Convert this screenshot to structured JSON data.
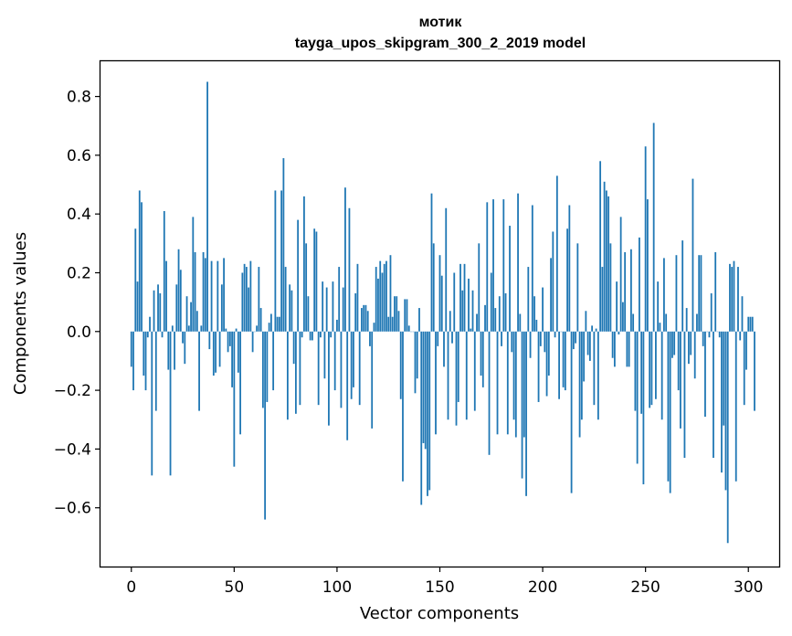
{
  "chart_data": {
    "type": "bar",
    "title": "мотик",
    "subtitle": "tayga_upos_skipgram_300_2_2019 model",
    "xlabel": "Vector components",
    "ylabel": "Components values",
    "xlim": [
      -15,
      315
    ],
    "ylim": [
      -0.8,
      0.92
    ],
    "xticks": [
      0,
      50,
      100,
      150,
      200,
      250,
      300
    ],
    "yticks": [
      -0.6,
      -0.4,
      -0.2,
      0.0,
      0.2,
      0.4,
      0.6,
      0.8
    ],
    "ytick_labels": [
      "−0.6",
      "−0.4",
      "−0.2",
      "0.0",
      "0.2",
      "0.4",
      "0.6",
      "0.8"
    ],
    "grid": false,
    "bar_color": "#1f77b4",
    "values": [
      -0.12,
      -0.2,
      0.35,
      0.17,
      0.48,
      0.44,
      -0.15,
      -0.2,
      -0.02,
      0.05,
      -0.49,
      0.14,
      -0.27,
      0.16,
      0.13,
      -0.02,
      0.41,
      0.24,
      -0.13,
      -0.49,
      0.02,
      -0.13,
      0.16,
      0.28,
      0.21,
      -0.04,
      -0.11,
      0.12,
      0.02,
      0.1,
      0.39,
      0.27,
      0.07,
      -0.27,
      0.02,
      0.27,
      0.25,
      0.85,
      -0.06,
      0.24,
      -0.15,
      -0.14,
      0.24,
      -0.12,
      0.16,
      0.25,
      0.01,
      -0.07,
      -0.05,
      -0.19,
      -0.46,
      0.01,
      -0.14,
      -0.35,
      0.2,
      0.23,
      0.22,
      0.15,
      0.24,
      -0.07,
      0.0,
      0.02,
      0.22,
      0.08,
      -0.26,
      -0.64,
      -0.24,
      0.03,
      0.06,
      -0.2,
      0.48,
      0.05,
      0.05,
      0.48,
      0.59,
      0.22,
      -0.3,
      0.16,
      0.14,
      -0.11,
      -0.28,
      0.38,
      -0.25,
      -0.02,
      0.46,
      0.3,
      0.12,
      -0.03,
      -0.03,
      0.35,
      0.34,
      -0.25,
      -0.02,
      0.17,
      -0.16,
      0.15,
      -0.32,
      -0.02,
      0.17,
      -0.2,
      0.04,
      0.22,
      -0.26,
      0.15,
      0.49,
      -0.37,
      0.42,
      -0.23,
      -0.19,
      0.13,
      0.23,
      -0.25,
      0.08,
      0.09,
      0.09,
      0.07,
      -0.05,
      -0.33,
      0.03,
      0.22,
      0.18,
      0.24,
      0.2,
      0.23,
      0.24,
      0.05,
      0.26,
      0.05,
      0.12,
      0.12,
      0.07,
      -0.23,
      -0.51,
      0.11,
      0.11,
      0.02,
      0.0,
      0.0,
      -0.21,
      -0.16,
      0.08,
      -0.59,
      -0.38,
      -0.4,
      -0.56,
      -0.54,
      0.47,
      0.3,
      -0.35,
      -0.05,
      0.26,
      0.19,
      -0.12,
      0.42,
      -0.3,
      0.07,
      -0.04,
      0.2,
      -0.32,
      -0.24,
      0.23,
      0.14,
      0.23,
      -0.3,
      0.18,
      0.01,
      0.14,
      -0.27,
      0.06,
      0.3,
      -0.15,
      -0.19,
      0.09,
      0.44,
      -0.42,
      0.2,
      0.45,
      0.08,
      -0.35,
      0.12,
      -0.05,
      0.45,
      0.13,
      -0.35,
      0.36,
      -0.07,
      -0.3,
      -0.36,
      0.47,
      0.06,
      -0.5,
      -0.36,
      -0.56,
      0.22,
      -0.09,
      0.43,
      0.12,
      0.04,
      -0.24,
      -0.05,
      0.15,
      -0.07,
      -0.22,
      -0.15,
      0.25,
      0.34,
      -0.02,
      0.53,
      -0.23,
      0.0,
      -0.19,
      -0.2,
      0.35,
      0.43,
      -0.55,
      -0.06,
      -0.04,
      0.3,
      -0.36,
      -0.3,
      -0.17,
      0.07,
      -0.08,
      -0.1,
      0.02,
      -0.25,
      0.01,
      -0.3,
      0.58,
      0.22,
      0.51,
      0.48,
      0.46,
      0.3,
      -0.09,
      -0.12,
      0.17,
      -0.01,
      0.39,
      0.1,
      0.27,
      -0.12,
      -0.12,
      0.28,
      0.06,
      -0.27,
      -0.45,
      0.32,
      -0.28,
      -0.52,
      0.63,
      0.45,
      -0.26,
      -0.25,
      0.71,
      -0.23,
      0.17,
      0.03,
      -0.3,
      0.25,
      0.06,
      -0.51,
      -0.55,
      -0.09,
      -0.08,
      0.26,
      -0.2,
      -0.33,
      0.31,
      -0.43,
      0.08,
      -0.11,
      -0.08,
      0.52,
      -0.16,
      0.06,
      0.26,
      0.26,
      -0.05,
      -0.29,
      0.0,
      -0.02,
      0.13,
      -0.43,
      0.27,
      0.0,
      -0.02,
      -0.48,
      -0.32,
      -0.54,
      -0.72,
      0.23,
      0.22,
      0.24,
      -0.51,
      0.22,
      -0.03,
      0.12,
      -0.25,
      -0.13,
      0.05,
      0.05,
      0.05,
      -0.27
    ]
  }
}
